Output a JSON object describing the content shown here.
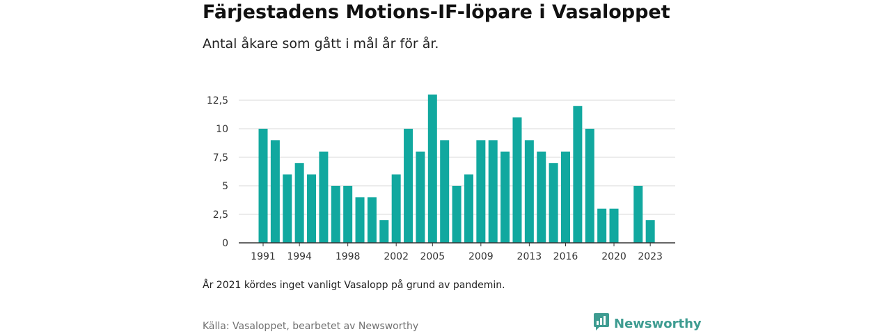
{
  "header": {
    "title": "Färjestadens Motions-IF-löpare i Vasaloppet",
    "subtitle": "Antal åkare som gått i mål år för år."
  },
  "footer": {
    "note": "År 2021 kördes inget vanligt Vasalopp på grund av pandemin.",
    "source": "Källa: Vasaloppet, bearbetet av Newsworthy",
    "brand": "Newsworthy",
    "brand_icon": "bar-chart-bubble-icon"
  },
  "colors": {
    "bar": "#11a89f",
    "grid": "#d9d9d9",
    "axis": "#333333",
    "brand": "#3e9c91"
  },
  "chart_data": {
    "type": "bar",
    "x": [
      1991,
      1992,
      1993,
      1994,
      1995,
      1996,
      1997,
      1998,
      1999,
      2000,
      2001,
      2002,
      2003,
      2004,
      2005,
      2006,
      2007,
      2008,
      2009,
      2010,
      2011,
      2012,
      2013,
      2014,
      2015,
      2016,
      2017,
      2018,
      2019,
      2020,
      2021,
      2022,
      2023
    ],
    "values": [
      10,
      9,
      6,
      7,
      6,
      8,
      5,
      5,
      4,
      4,
      2,
      6,
      10,
      8,
      13,
      9,
      5,
      6,
      9,
      9,
      8,
      11,
      9,
      8,
      7,
      8,
      12,
      10,
      3,
      3,
      null,
      5,
      2
    ],
    "x_tick_labels": [
      "1991",
      "1994",
      "1998",
      "2002",
      "2005",
      "2009",
      "2013",
      "2016",
      "2020",
      "2023"
    ],
    "x_tick_values": [
      1991,
      1994,
      1998,
      2002,
      2005,
      2009,
      2013,
      2016,
      2020,
      2023
    ],
    "y_ticks": [
      0,
      2.5,
      5,
      7.5,
      10,
      12.5
    ],
    "y_tick_labels": [
      "0",
      "2,5",
      "5",
      "7,5",
      "10",
      "12,5"
    ],
    "ylim": [
      0,
      13
    ],
    "grid": true,
    "legend": "none"
  }
}
